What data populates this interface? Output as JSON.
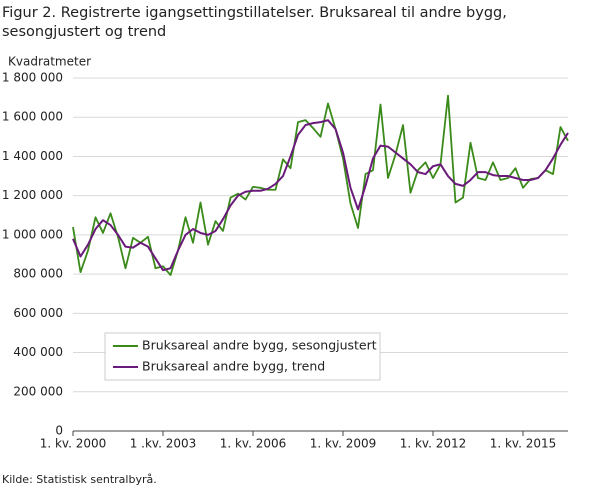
{
  "chart_data": {
    "type": "line",
    "title": "Figur 2. Registrerte igangsettingstillatelser. Bruksareal til andre bygg, sesongjustert og trend",
    "ylabel": "Kvadratmeter",
    "source": "Kilde:  Statistisk sentralbyrå.",
    "categories": [
      "1. kv. 2000",
      null,
      null,
      null,
      null,
      null,
      null,
      null,
      null,
      null,
      null,
      null,
      "1 .kv. 2003",
      null,
      null,
      null,
      null,
      null,
      null,
      null,
      null,
      null,
      null,
      null,
      "1. kv. 2006",
      null,
      null,
      null,
      null,
      null,
      null,
      null,
      null,
      null,
      null,
      null,
      "1. kv. 2009",
      null,
      null,
      null,
      null,
      null,
      null,
      null,
      null,
      null,
      null,
      null,
      "1. kv. 2012",
      null,
      null,
      null,
      null,
      null,
      null,
      null,
      null,
      null,
      null,
      null,
      "1. kv. 2015",
      null,
      null,
      null,
      null,
      null,
      null
    ],
    "series": [
      {
        "name": "Bruksareal andre bygg, sesongjustert",
        "color": "#3a8a1a",
        "values": [
          1040000,
          810000,
          920000,
          1090000,
          1010000,
          1110000,
          990000,
          830000,
          985000,
          960000,
          990000,
          830000,
          840000,
          795000,
          920000,
          1090000,
          960000,
          1165000,
          950000,
          1070000,
          1020000,
          1190000,
          1210000,
          1180000,
          1245000,
          1240000,
          1230000,
          1230000,
          1385000,
          1340000,
          1575000,
          1585000,
          1545000,
          1500000,
          1670000,
          1540000,
          1390000,
          1160000,
          1035000,
          1310000,
          1330000,
          1665000,
          1290000,
          1410000,
          1560000,
          1215000,
          1330000,
          1370000,
          1290000,
          1360000,
          1710000,
          1165000,
          1190000,
          1470000,
          1290000,
          1280000,
          1370000,
          1280000,
          1290000,
          1340000,
          1240000,
          1285000,
          1290000,
          1330000,
          1310000,
          1550000,
          1480000
        ]
      },
      {
        "name": "Bruksareal andre bygg, trend",
        "color": "#6a1a7a",
        "values": [
          980000,
          890000,
          950000,
          1030000,
          1075000,
          1050000,
          1000000,
          940000,
          935000,
          960000,
          940000,
          880000,
          820000,
          830000,
          920000,
          1000000,
          1030000,
          1010000,
          1000000,
          1020000,
          1080000,
          1150000,
          1200000,
          1220000,
          1225000,
          1225000,
          1235000,
          1260000,
          1300000,
          1400000,
          1510000,
          1560000,
          1570000,
          1575000,
          1585000,
          1540000,
          1420000,
          1240000,
          1130000,
          1250000,
          1390000,
          1455000,
          1450000,
          1420000,
          1390000,
          1360000,
          1320000,
          1310000,
          1350000,
          1360000,
          1300000,
          1260000,
          1250000,
          1280000,
          1320000,
          1320000,
          1305000,
          1300000,
          1300000,
          1290000,
          1280000,
          1280000,
          1290000,
          1330000,
          1390000,
          1460000,
          1520000
        ]
      }
    ],
    "ylim": [
      0,
      1800000
    ],
    "yticks": [
      0,
      {
        "value": 200000,
        "label": "200 000"
      },
      {
        "value": 400000,
        "label": "400 000"
      },
      {
        "value": 600000,
        "label": "600 000"
      },
      {
        "value": 800000,
        "label": "800 000"
      },
      {
        "value": 1000000,
        "label": "1 000 000"
      },
      {
        "value": 1200000,
        "label": "1 200 000"
      },
      {
        "value": 1400000,
        "label": "1 400 000"
      },
      {
        "value": 1600000,
        "label": "1 600 000"
      },
      {
        "value": 1800000,
        "label": "1 800 000"
      }
    ],
    "grid": true,
    "legend": "lower left"
  }
}
